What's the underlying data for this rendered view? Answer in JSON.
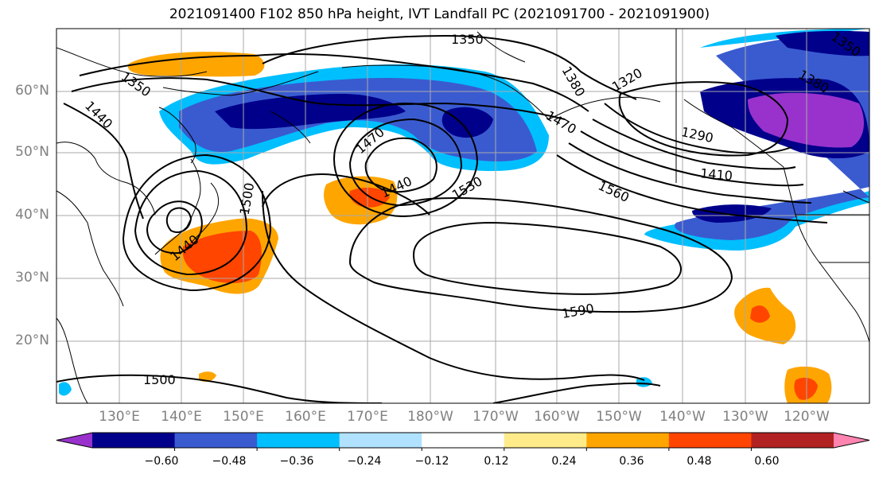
{
  "title": "2021091400 F102 850 hPa height, IVT Landfall PC (2021091700 - 2021091900)",
  "lat_labels": [
    "60°N",
    "50°N",
    "40°N",
    "30°N",
    "20°N"
  ],
  "lon_labels": [
    "130°E",
    "140°E",
    "150°E",
    "160°E",
    "170°E",
    "180°W",
    "170°W",
    "160°W",
    "150°W",
    "140°W",
    "130°W",
    "120°W"
  ],
  "contour_labels": [
    "1350",
    "1380",
    "1320",
    "1350",
    "1380",
    "1350",
    "1440",
    "1470",
    "1470",
    "1290",
    "1440",
    "1530",
    "1410",
    "1500",
    "1560",
    "1440",
    "1590",
    "1500"
  ],
  "colorbar": {
    "colors": [
      "#9932CC",
      "#00008B",
      "#3A5BD0",
      "#00BFFF",
      "#B0E2FF",
      "#FFFFFF",
      "#FFEB8A",
      "#FFA500",
      "#FF4500",
      "#B22222",
      "#FF85B0"
    ],
    "ticks": [
      "−0.60",
      "−0.48",
      "−0.36",
      "−0.24",
      "−0.12",
      "0.12",
      "0.24",
      "0.36",
      "0.48",
      "0.60"
    ]
  }
}
